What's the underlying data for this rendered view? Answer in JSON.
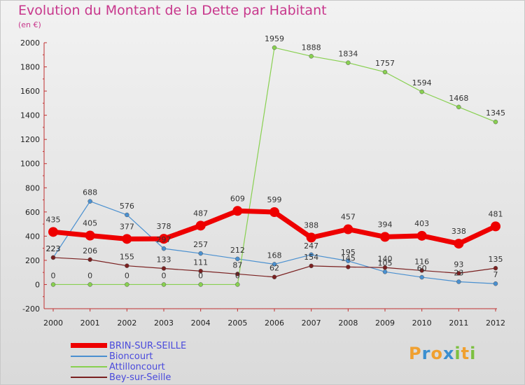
{
  "header": {
    "title": "Evolution du Montant de la Dette par Habitant",
    "subtitle": "(en €)"
  },
  "logo": {
    "letters": [
      "P",
      "r",
      "o",
      "x",
      "i",
      "t",
      "i"
    ],
    "colors": [
      "#f0a030",
      "#3a8fd0",
      "#f0a030",
      "#3a8fd0",
      "#7cc040",
      "#f0a030",
      "#7cc040"
    ]
  },
  "chart_data": {
    "type": "line",
    "title": "Evolution du Montant de la Dette par Habitant",
    "ylabel": "(en €)",
    "x": [
      "2000",
      "2001",
      "2002",
      "2003",
      "2004",
      "2005",
      "2006",
      "2007",
      "2008",
      "2009",
      "2010",
      "2011",
      "2012"
    ],
    "ylim": [
      -200,
      2000
    ],
    "yticks": [
      "-200",
      "0",
      "200",
      "400",
      "600",
      "800",
      "1000",
      "1200",
      "1400",
      "1600",
      "1800",
      "2000"
    ],
    "grid": false,
    "legend": "bottom-left",
    "series": [
      {
        "name": "BRIN-SUR-SEILLE",
        "color": "#ee0000",
        "values": [
          435,
          405,
          377,
          378,
          487,
          609,
          599,
          388,
          457,
          394,
          403,
          338,
          481
        ],
        "labels": [
          "435",
          "405",
          "377",
          "378",
          "487",
          "609",
          "599",
          "388",
          "457",
          "394",
          "403",
          "338",
          "481"
        ]
      },
      {
        "name": "Bioncourt",
        "color": "#4a90d0",
        "values": [
          223,
          688,
          576,
          297,
          257,
          212,
          168,
          247,
          195,
          105,
          60,
          23,
          7
        ],
        "labels": [
          "223",
          "688",
          "576",
          "297",
          "257",
          "212",
          "168",
          "247",
          "195",
          "105",
          "60",
          "23",
          "7"
        ]
      },
      {
        "name": "Attilloncourt",
        "color": "#88d050",
        "values": [
          0,
          0,
          0,
          0,
          0,
          0,
          1959,
          1888,
          1834,
          1757,
          1594,
          1468,
          1345
        ],
        "labels": [
          "0",
          "0",
          "0",
          "0",
          "0",
          "0",
          "1959",
          "1888",
          "1834",
          "1757",
          "1594",
          "1468",
          "1345"
        ]
      },
      {
        "name": "Bey-sur-Seille",
        "color": "#7a2020",
        "values": [
          223,
          206,
          155,
          133,
          111,
          87,
          62,
          154,
          145,
          140,
          116,
          93,
          135
        ],
        "labels": [
          "223",
          "206",
          "155",
          "133",
          "111",
          "87",
          "62",
          "154",
          "145",
          "140",
          "116",
          "93",
          "135"
        ]
      }
    ]
  }
}
